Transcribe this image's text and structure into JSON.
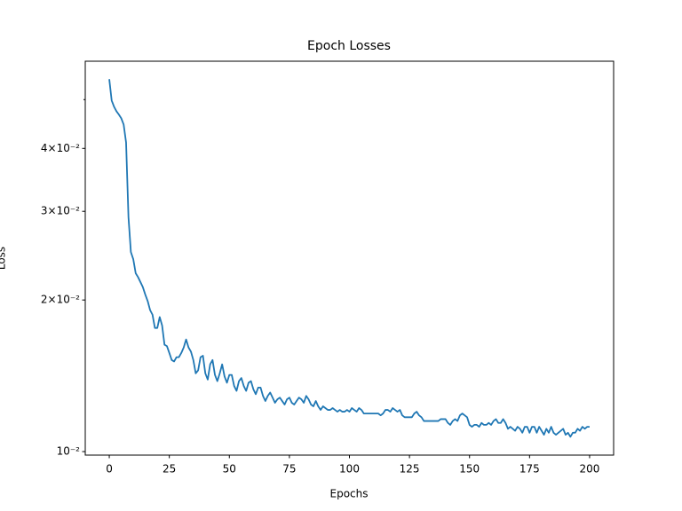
{
  "chart_data": {
    "type": "line",
    "title": "Epoch Losses",
    "x_label": "Epochs",
    "y_label": "Loss",
    "yscale": "log",
    "xlim": [
      -10,
      210
    ],
    "ylim": [
      0.00984,
      0.0596
    ],
    "xticks": [
      0,
      25,
      50,
      75,
      100,
      125,
      150,
      175,
      200
    ],
    "yticks": [
      {
        "value": 0.01,
        "label": "10⁻²"
      },
      {
        "value": 0.02,
        "label": "2×10⁻²"
      },
      {
        "value": 0.03,
        "label": "3×10⁻²"
      },
      {
        "value": 0.04,
        "label": "4×10⁻²"
      }
    ],
    "minor_yticks": [
      0.05
    ],
    "x": [
      0,
      1,
      2,
      3,
      4,
      5,
      6,
      7,
      8,
      9,
      10,
      11,
      12,
      13,
      14,
      15,
      16,
      17,
      18,
      19,
      20,
      21,
      22,
      23,
      24,
      25,
      26,
      27,
      28,
      29,
      30,
      31,
      32,
      33,
      34,
      35,
      36,
      37,
      38,
      39,
      40,
      41,
      42,
      43,
      44,
      45,
      46,
      47,
      48,
      49,
      50,
      51,
      52,
      53,
      54,
      55,
      56,
      57,
      58,
      59,
      60,
      61,
      62,
      63,
      64,
      65,
      66,
      67,
      68,
      69,
      70,
      71,
      72,
      73,
      74,
      75,
      76,
      77,
      78,
      79,
      80,
      81,
      82,
      83,
      84,
      85,
      86,
      87,
      88,
      89,
      90,
      91,
      92,
      93,
      94,
      95,
      96,
      97,
      98,
      99,
      100,
      101,
      102,
      103,
      104,
      105,
      106,
      107,
      108,
      109,
      110,
      111,
      112,
      113,
      114,
      115,
      116,
      117,
      118,
      119,
      120,
      121,
      122,
      123,
      124,
      125,
      126,
      127,
      128,
      129,
      130,
      131,
      132,
      133,
      134,
      135,
      136,
      137,
      138,
      139,
      140,
      141,
      142,
      143,
      144,
      145,
      146,
      147,
      148,
      149,
      150,
      151,
      152,
      153,
      154,
      155,
      156,
      157,
      158,
      159,
      160,
      161,
      162,
      163,
      164,
      165,
      166,
      167,
      168,
      169,
      170,
      171,
      172,
      173,
      174,
      175,
      176,
      177,
      178,
      179,
      180,
      181,
      182,
      183,
      184,
      185,
      186,
      187,
      188,
      189,
      190,
      191,
      192,
      193,
      194,
      195,
      196,
      197,
      198,
      199,
      200
    ],
    "series": [
      {
        "color": "#1f77b4",
        "values": [
          0.0549,
          0.0498,
          0.0484,
          0.0474,
          0.0467,
          0.0459,
          0.0446,
          0.0411,
          0.0292,
          0.0249,
          0.0241,
          0.0226,
          0.0222,
          0.0217,
          0.0212,
          0.0205,
          0.0199,
          0.0191,
          0.0187,
          0.0176,
          0.0176,
          0.0185,
          0.0178,
          0.0163,
          0.0162,
          0.0157,
          0.0152,
          0.0151,
          0.0154,
          0.0154,
          0.0157,
          0.0161,
          0.0167,
          0.0161,
          0.0158,
          0.0152,
          0.0143,
          0.0145,
          0.0154,
          0.0155,
          0.0143,
          0.0139,
          0.0149,
          0.0152,
          0.0142,
          0.0138,
          0.0143,
          0.0149,
          0.0141,
          0.0137,
          0.0142,
          0.0142,
          0.0135,
          0.0132,
          0.0138,
          0.014,
          0.0135,
          0.0132,
          0.0137,
          0.0138,
          0.0133,
          0.013,
          0.0134,
          0.0134,
          0.0129,
          0.0126,
          0.0129,
          0.0131,
          0.0128,
          0.0125,
          0.0127,
          0.0128,
          0.0126,
          0.0124,
          0.0127,
          0.0128,
          0.0125,
          0.0124,
          0.0126,
          0.0128,
          0.0127,
          0.0125,
          0.0129,
          0.0127,
          0.0124,
          0.0123,
          0.0126,
          0.0123,
          0.0121,
          0.0123,
          0.0122,
          0.0121,
          0.0121,
          0.0122,
          0.0121,
          0.012,
          0.0121,
          0.012,
          0.012,
          0.0121,
          0.012,
          0.0122,
          0.0121,
          0.012,
          0.0122,
          0.0121,
          0.0119,
          0.0119,
          0.0119,
          0.0119,
          0.0119,
          0.0119,
          0.0119,
          0.0118,
          0.0119,
          0.0121,
          0.0121,
          0.012,
          0.0122,
          0.0121,
          0.012,
          0.0121,
          0.0118,
          0.0117,
          0.0117,
          0.0117,
          0.0117,
          0.0119,
          0.012,
          0.0118,
          0.0117,
          0.0115,
          0.0115,
          0.0115,
          0.0115,
          0.0115,
          0.0115,
          0.0115,
          0.0116,
          0.0116,
          0.0116,
          0.0114,
          0.0113,
          0.0115,
          0.0116,
          0.0115,
          0.0118,
          0.0119,
          0.0118,
          0.0117,
          0.0113,
          0.0112,
          0.0113,
          0.0113,
          0.0112,
          0.0114,
          0.0113,
          0.0113,
          0.0114,
          0.0113,
          0.0115,
          0.0116,
          0.0114,
          0.0114,
          0.0116,
          0.0114,
          0.0111,
          0.0112,
          0.0111,
          0.011,
          0.0112,
          0.0111,
          0.0109,
          0.0112,
          0.0112,
          0.0109,
          0.0112,
          0.0112,
          0.0109,
          0.0112,
          0.011,
          0.0108,
          0.0111,
          0.0109,
          0.0112,
          0.0109,
          0.0108,
          0.0109,
          0.011,
          0.0111,
          0.0108,
          0.0109,
          0.0107,
          0.0109,
          0.0109,
          0.0111,
          0.011,
          0.0112,
          0.0111,
          0.0112,
          0.0112
        ]
      }
    ]
  }
}
